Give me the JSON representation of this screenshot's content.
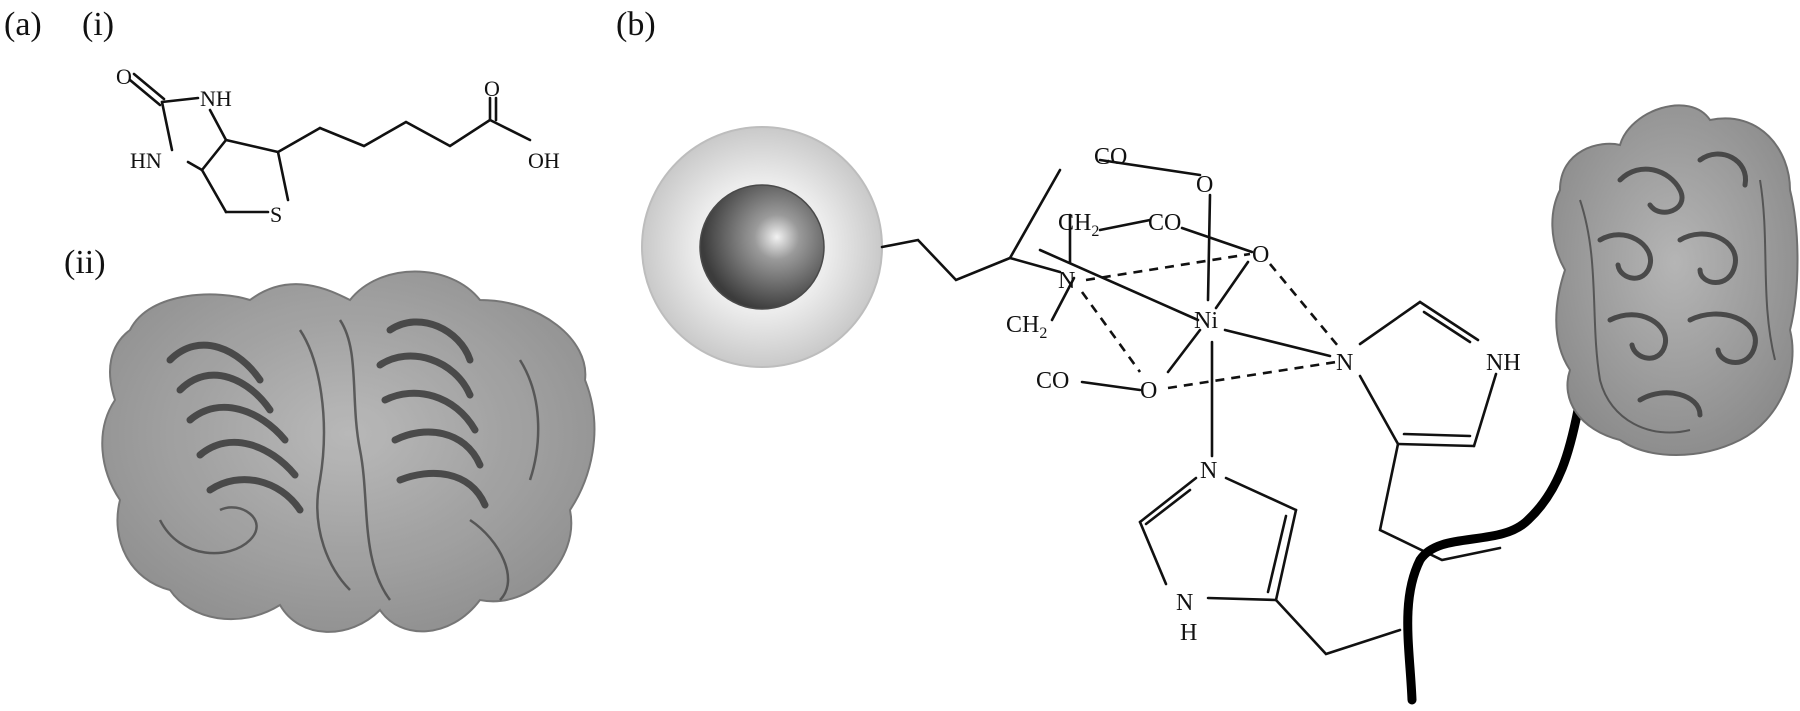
{
  "panels": {
    "a": {
      "label": "(a)",
      "sub_i": "(i)",
      "sub_ii": "(ii)"
    },
    "b": {
      "label": "(b)"
    }
  },
  "biotin": {
    "atoms": {
      "o_carbonyl": "O",
      "nh_top": "NH",
      "hn_left": "HN",
      "s": "S",
      "o_acid": "O",
      "oh": "OH"
    }
  },
  "chelate": {
    "co_top": "CO",
    "o_top": "O",
    "ch2_upper": "CH",
    "ch2_upper_sub": "2",
    "co_mid": "CO",
    "o_right": "O",
    "n_center": "N",
    "ni": "Ni",
    "ch2_lower": "CH",
    "ch2_lower_sub": "2",
    "co_bottom": "CO",
    "o_bottom": "O",
    "n_his1": "N",
    "nh_his1": "NH",
    "n_his2": "N",
    "n_his2_bottom": "N",
    "h_his2_bottom": "H"
  },
  "colors": {
    "ink": "#111111",
    "protein_surface": "#8c8c8c",
    "protein_ribbon": "#3a3a3a",
    "bead_outer": "#e6e6e6",
    "bead_core": "#5a5a5a",
    "tag_backbone": "#000000"
  }
}
